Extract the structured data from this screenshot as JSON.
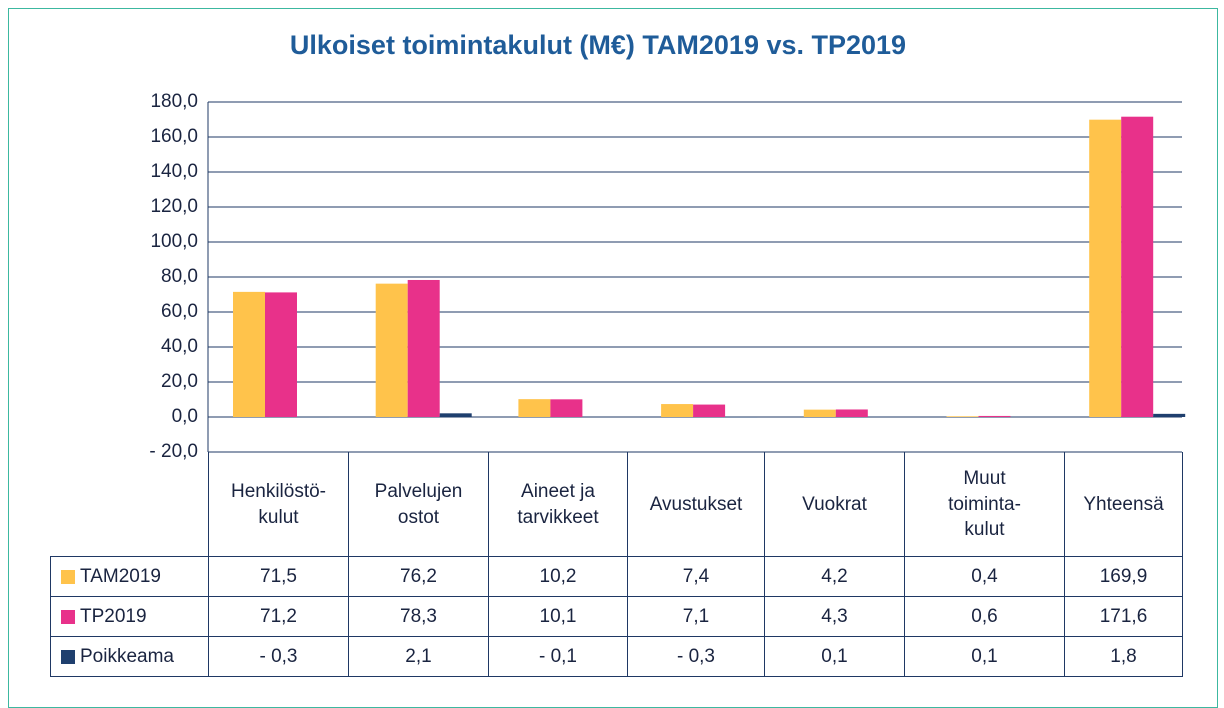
{
  "chart_data": {
    "type": "bar",
    "title": "Ulkoiset toimintakulut (M€) TAM2019 vs. TP2019",
    "categories": [
      "Henkilöstö-\nkulut",
      "Palvelujen\nostot",
      "Aineet ja\ntarvikkeet",
      "Avustukset",
      "Vuokrat",
      "Muut\ntoiminta-\nkulut",
      "Yhteensä"
    ],
    "series": [
      {
        "name": "TAM2019",
        "color": "#ffc34b",
        "values": [
          71.5,
          76.2,
          10.2,
          7.4,
          4.2,
          0.4,
          169.9
        ],
        "value_labels": [
          "71,5",
          "76,2",
          "10,2",
          "7,4",
          "4,2",
          "0,4",
          "169,9"
        ]
      },
      {
        "name": "TP2019",
        "color": "#e8318a",
        "values": [
          71.2,
          78.3,
          10.1,
          7.1,
          4.3,
          0.6,
          171.6
        ],
        "value_labels": [
          "71,2",
          "78,3",
          "10,1",
          "7,1",
          "4,3",
          "0,6",
          "171,6"
        ]
      },
      {
        "name": "Poikkeama",
        "color": "#1f3f6e",
        "values": [
          -0.3,
          2.1,
          -0.1,
          -0.3,
          0.1,
          0.1,
          1.8
        ],
        "value_labels": [
          "- 0,3",
          "2,1",
          "- 0,1",
          "- 0,3",
          "0,1",
          "0,1",
          "1,8"
        ]
      }
    ],
    "ylim": [
      -20,
      180
    ],
    "yticks": [
      {
        "value": -20,
        "label": "- 20,0"
      },
      {
        "value": 0,
        "label": "0,0"
      },
      {
        "value": 20,
        "label": "20,0"
      },
      {
        "value": 40,
        "label": "40,0"
      },
      {
        "value": 60,
        "label": "60,0"
      },
      {
        "value": 80,
        "label": "80,0"
      },
      {
        "value": 100,
        "label": "100,0"
      },
      {
        "value": 120,
        "label": "120,0"
      },
      {
        "value": 140,
        "label": "140,0"
      },
      {
        "value": 160,
        "label": "160,0"
      },
      {
        "value": 180,
        "label": "180,0"
      }
    ],
    "grid": true,
    "legend": "table"
  }
}
